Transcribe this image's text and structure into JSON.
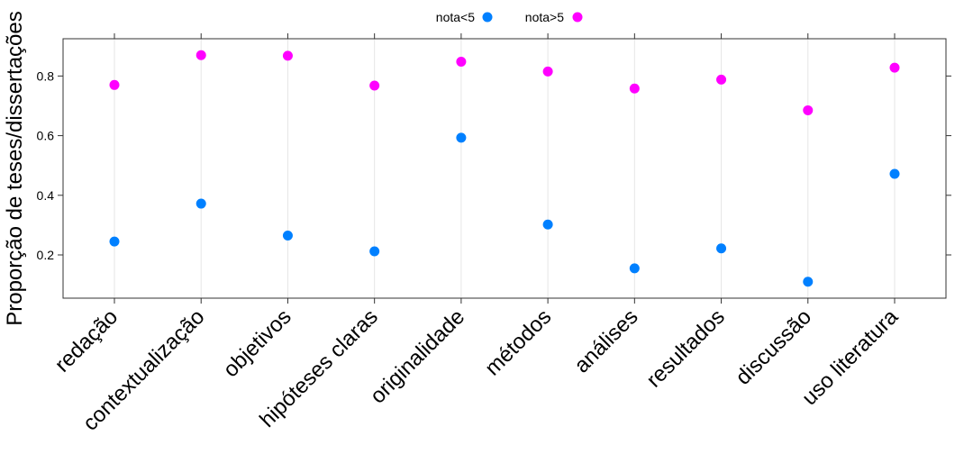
{
  "chart_data": {
    "type": "scatter",
    "ylabel": "Proporção de teses/dissertações",
    "categories": [
      "redação",
      "contextualização",
      "objetivos",
      "hipóteses claras",
      "originalidade",
      "métodos",
      "análises",
      "resultados",
      "discussão",
      "uso literatura"
    ],
    "yticks": [
      "0.2",
      "0.4",
      "0.6",
      "0.8"
    ],
    "ylim": [
      0.055,
      0.925
    ],
    "grid": "vertical",
    "legend_position": "top",
    "series": [
      {
        "name": "nota<5",
        "color": "#0080ff",
        "values": [
          0.245,
          0.372,
          0.265,
          0.212,
          0.593,
          0.302,
          0.155,
          0.222,
          0.11,
          0.472
        ]
      },
      {
        "name": "nota>5",
        "color": "#ff00ff",
        "values": [
          0.77,
          0.87,
          0.868,
          0.768,
          0.848,
          0.815,
          0.758,
          0.788,
          0.685,
          0.828
        ]
      }
    ]
  }
}
